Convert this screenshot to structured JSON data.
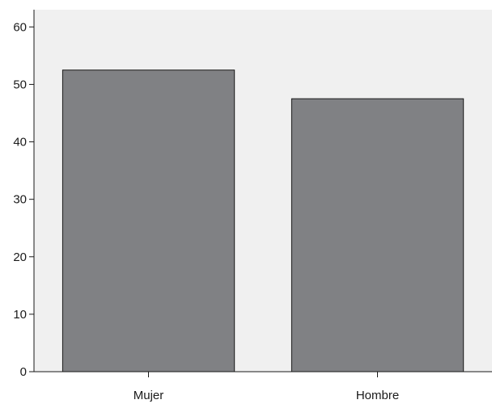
{
  "chart_data": {
    "type": "bar",
    "title": "",
    "xlabel": "",
    "ylabel": "",
    "categories": [
      "Mujer",
      "Hombre"
    ],
    "values": [
      52.5,
      47.5
    ],
    "ylim": [
      0,
      63
    ],
    "yticks": [
      0,
      10,
      20,
      30,
      40,
      50,
      60
    ],
    "grid": false,
    "legend": "none",
    "colors": {
      "plot_background": "#f0f0f0",
      "bar_fill": "#808184",
      "bar_stroke": "#1a1a1a",
      "axis": "#1a1a1a"
    }
  }
}
